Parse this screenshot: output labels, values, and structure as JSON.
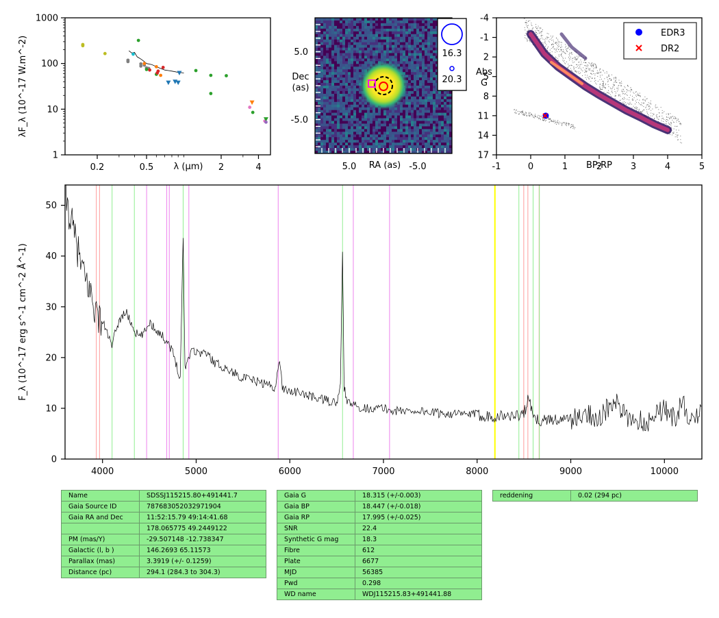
{
  "chart_data": [
    {
      "type": "scatter",
      "panel": "sed",
      "title": "",
      "xlabel": "λ (μm)",
      "ylabel": "λF_λ (10^-17 W.m^-2)",
      "xscale": "log",
      "yscale": "log",
      "xlim": [
        0.11,
        5.0
      ],
      "ylim": [
        1,
        1000
      ],
      "xticks": [
        {
          "v": 0.2,
          "t": "0.2"
        },
        {
          "v": 0.5,
          "t": "0.5"
        },
        {
          "v": 2,
          "t": "2"
        },
        {
          "v": 4,
          "t": "4"
        }
      ],
      "yticks": [
        {
          "v": 1,
          "t": "1"
        },
        {
          "v": 10,
          "t": "10"
        },
        {
          "v": 100,
          "t": "100"
        },
        {
          "v": 1000,
          "t": "1000"
        }
      ],
      "series": [
        {
          "color": "#bcbd22",
          "marker": "circle",
          "points": [
            [
              0.153,
              260
            ],
            [
              0.153,
              245
            ],
            [
              0.231,
              165
            ]
          ]
        },
        {
          "color": "#7f7f7f",
          "marker": "circle",
          "points": [
            [
              0.354,
              110
            ],
            [
              0.354,
              118
            ],
            [
              0.45,
              88
            ],
            [
              0.48,
              92
            ],
            [
              0.5,
              80
            ],
            [
              0.52,
              78
            ],
            [
              0.45,
              98
            ]
          ]
        },
        {
          "color": "#17becf",
          "marker": "circle",
          "points": [
            [
              0.39,
              160
            ]
          ]
        },
        {
          "color": "#2ca02c",
          "marker": "circle",
          "points": [
            [
              0.43,
              320
            ],
            [
              0.5,
              74
            ],
            [
              0.6,
              58
            ],
            [
              1.25,
              70
            ],
            [
              1.65,
              55
            ],
            [
              2.2,
              54
            ],
            [
              1.65,
              22
            ],
            [
              3.6,
              8.5
            ]
          ]
        },
        {
          "color": "#d62728",
          "marker": "circle",
          "points": [
            [
              0.53,
              72
            ],
            [
              0.61,
              62
            ],
            [
              0.68,
              82
            ],
            [
              0.62,
              68
            ]
          ]
        },
        {
          "color": "#ff7f0e",
          "marker": "circle",
          "points": [
            [
              0.48,
              100
            ],
            [
              0.6,
              85
            ],
            [
              0.65,
              55
            ]
          ]
        },
        {
          "color": "#e377c2",
          "marker": "circle",
          "points": [
            [
              3.4,
              11
            ],
            [
              4.5,
              5.5
            ]
          ]
        },
        {
          "color": "#1f77b4",
          "marker": "triangle",
          "points": [
            [
              0.75,
              38
            ],
            [
              0.85,
              40
            ],
            [
              0.9,
              38
            ],
            [
              0.92,
              62
            ]
          ]
        },
        {
          "color": "#ff7f0e",
          "marker": "triangle",
          "points": [
            [
              3.55,
              14
            ]
          ]
        },
        {
          "color": "#2ca02c",
          "marker": "triangle",
          "points": [
            [
              4.6,
              6
            ]
          ]
        },
        {
          "color": "#9467bd",
          "marker": "circle",
          "points": [
            [
              4.6,
              5.2
            ]
          ]
        }
      ],
      "spectrum_segment": {
        "x": [
          0.36,
          0.38,
          0.4,
          0.42,
          0.44,
          0.46,
          0.48,
          0.5,
          0.55,
          0.6,
          0.65,
          0.7,
          0.75,
          0.8,
          0.85,
          0.9,
          0.95,
          1.0
        ],
        "y": [
          190,
          170,
          175,
          140,
          130,
          120,
          110,
          100,
          95,
          85,
          78,
          72,
          70,
          68,
          66,
          64,
          63,
          62
        ]
      }
    },
    {
      "type": "heatmap",
      "panel": "image",
      "xlabel": "RA (as)",
      "ylabel": "Dec\n(as)",
      "xlim": [
        10,
        -10
      ],
      "ylim": [
        -10,
        10
      ],
      "xticks": [
        {
          "v": 5,
          "t": "5.0"
        },
        {
          "v": -5,
          "t": "-5.0"
        }
      ],
      "yticks": [
        {
          "v": 5,
          "t": "5.0"
        },
        {
          "v": -5,
          "t": "-5.0"
        }
      ],
      "legend": [
        {
          "label": "16.3",
          "size": "large"
        },
        {
          "label": "20.3",
          "size": "small"
        }
      ],
      "legend_placement": "top-right"
    },
    {
      "type": "scatter",
      "panel": "hr",
      "xlabel": "BP-RP",
      "ylabel": "Abs\nG",
      "xlim": [
        -1,
        5
      ],
      "ylim": [
        17,
        -4
      ],
      "xticks": [
        {
          "v": -1,
          "t": "-1"
        },
        {
          "v": 0,
          "t": "0"
        },
        {
          "v": 1,
          "t": "1"
        },
        {
          "v": 2,
          "t": "2"
        },
        {
          "v": 3,
          "t": "3"
        },
        {
          "v": 4,
          "t": "4"
        },
        {
          "v": 5,
          "t": "5"
        }
      ],
      "yticks": [
        {
          "v": -4,
          "t": "-4"
        },
        {
          "v": -1,
          "t": "-1"
        },
        {
          "v": 2,
          "t": "2"
        },
        {
          "v": 5,
          "t": "5"
        },
        {
          "v": 8,
          "t": "8"
        },
        {
          "v": 11,
          "t": "11"
        },
        {
          "v": 14,
          "t": "14"
        },
        {
          "v": 17,
          "t": "17"
        }
      ],
      "series": [
        {
          "name": "EDR3",
          "color": "#0000ff",
          "marker": "circle",
          "points": [
            [
              0.44,
              11.0
            ]
          ]
        },
        {
          "name": "DR2",
          "color": "#ff0000",
          "marker": "cross",
          "points": [
            [
              0.42,
              11.0
            ]
          ]
        }
      ],
      "legend_placement": "top-right"
    },
    {
      "type": "line",
      "panel": "spectrum",
      "xlabel": "",
      "ylabel": "F_λ (10^-17 erg s^-1 cm^-2 Å^-1)",
      "xlim": [
        3600,
        10400
      ],
      "ylim": [
        0,
        54
      ],
      "xticks": [
        {
          "v": 4000,
          "t": "4000"
        },
        {
          "v": 5000,
          "t": "5000"
        },
        {
          "v": 6000,
          "t": "6000"
        },
        {
          "v": 7000,
          "t": "7000"
        },
        {
          "v": 8000,
          "t": "8000"
        },
        {
          "v": 9000,
          "t": "9000"
        },
        {
          "v": 10000,
          "t": "10000"
        }
      ],
      "yticks": [
        {
          "v": 0,
          "t": "0"
        },
        {
          "v": 10,
          "t": "10"
        },
        {
          "v": 20,
          "t": "20"
        },
        {
          "v": 30,
          "t": "30"
        },
        {
          "v": 40,
          "t": "40"
        },
        {
          "v": 50,
          "t": "50"
        }
      ],
      "x": [
        3600,
        3650,
        3700,
        3750,
        3800,
        3850,
        3900,
        3950,
        4000,
        4050,
        4100,
        4150,
        4200,
        4250,
        4300,
        4350,
        4400,
        4450,
        4500,
        4550,
        4600,
        4650,
        4700,
        4750,
        4800,
        4830,
        4861,
        4880,
        4920,
        4950,
        5000,
        5100,
        5200,
        5300,
        5400,
        5500,
        5600,
        5700,
        5800,
        5850,
        5890,
        5920,
        6000,
        6100,
        6200,
        6300,
        6400,
        6500,
        6540,
        6563,
        6580,
        6620,
        6700,
        6800,
        6900,
        7000,
        7100,
        7200,
        7300,
        7400,
        7500,
        7600,
        7700,
        7800,
        7900,
        8000,
        8100,
        8200,
        8300,
        8400,
        8500,
        8550,
        8600,
        8700,
        8800,
        8900,
        9000,
        9100,
        9200,
        9300,
        9400,
        9500,
        9550,
        9600,
        9700,
        9800,
        9900,
        10000,
        10100,
        10200,
        10300,
        10400
      ],
      "y": [
        52,
        48,
        44,
        40,
        36,
        34,
        31,
        28,
        27,
        25,
        22,
        26,
        28,
        29,
        27,
        25,
        24,
        25,
        27,
        26,
        25,
        24,
        23,
        21,
        18,
        16,
        44,
        18,
        20,
        22,
        21,
        21,
        19,
        18,
        17,
        16,
        15.5,
        15,
        14.5,
        14,
        20,
        14,
        13.5,
        13,
        12.5,
        12,
        11.5,
        11,
        14,
        41,
        14,
        11,
        10.5,
        10,
        10,
        10,
        9.5,
        9.5,
        9.5,
        9.5,
        9.2,
        9,
        9,
        8.8,
        8.8,
        8.8,
        8.5,
        8.5,
        8.5,
        8.5,
        9,
        12,
        8,
        7.5,
        8,
        7.5,
        8,
        8,
        9,
        8,
        10,
        11,
        9,
        8,
        8,
        7,
        9,
        10,
        8,
        11,
        7,
        9
      ],
      "vlines": [
        {
          "x": 3934,
          "color": "#ff9a9a"
        },
        {
          "x": 3968,
          "color": "#ff9a9a"
        },
        {
          "x": 4102,
          "color": "#90ee90"
        },
        {
          "x": 4340,
          "color": "#90ee90"
        },
        {
          "x": 4471,
          "color": "#ee82ee"
        },
        {
          "x": 4686,
          "color": "#ee82ee"
        },
        {
          "x": 4713,
          "color": "#ee82ee"
        },
        {
          "x": 4861,
          "color": "#90ee90"
        },
        {
          "x": 4922,
          "color": "#ee82ee"
        },
        {
          "x": 5876,
          "color": "#ee82ee"
        },
        {
          "x": 6563,
          "color": "#90ee90"
        },
        {
          "x": 6678,
          "color": "#ee82ee"
        },
        {
          "x": 7065,
          "color": "#ee82ee"
        },
        {
          "x": 8190,
          "color": "#ffff00"
        },
        {
          "x": 8446,
          "color": "#90ee90"
        },
        {
          "x": 8498,
          "color": "#ff9a9a"
        },
        {
          "x": 8542,
          "color": "#ff9a9a"
        },
        {
          "x": 8598,
          "color": "#90ee90"
        },
        {
          "x": 8662,
          "color": "#ff9a9a"
        },
        {
          "x": 8665,
          "color": "#90ee90"
        }
      ]
    }
  ],
  "tables": {
    "t1": [
      [
        "Name",
        "SDSSJ115215.80+491441.7"
      ],
      [
        "Gaia Source ID",
        "787683052032971904"
      ],
      [
        "Gaia RA and Dec",
        "11:52:15.79    49:14:41.68"
      ],
      [
        "",
        "178.065775    49.2449122"
      ],
      [
        "PM (mas/Y)",
        "-29.507148    -12.738347"
      ],
      [
        "Galactic (l, b )",
        "146.2693    65.11573"
      ],
      [
        "Parallax (mas)",
        "3.3919 (+/- 0.1259)"
      ],
      [
        "Distance (pc)",
        "294.1 (284.3 to 304.3)"
      ]
    ],
    "t2": [
      [
        "Gaia G",
        "18.315 (+/-0.003)"
      ],
      [
        "Gaia BP",
        "18.447 (+/-0.018)"
      ],
      [
        "Gaia RP",
        "17.995 (+/-0.025)"
      ],
      [
        "SNR",
        "22.4"
      ],
      [
        "Synthetic G mag",
        "18.3"
      ],
      [
        "Fibre",
        "612"
      ],
      [
        "Plate",
        "6677"
      ],
      [
        "MJD",
        "56385"
      ],
      [
        "Pwd",
        "0.298"
      ],
      [
        "WD name",
        "WDJ115215.83+491441.88"
      ]
    ],
    "t3": [
      [
        "reddening",
        "0.02 (294 pc)"
      ]
    ]
  }
}
